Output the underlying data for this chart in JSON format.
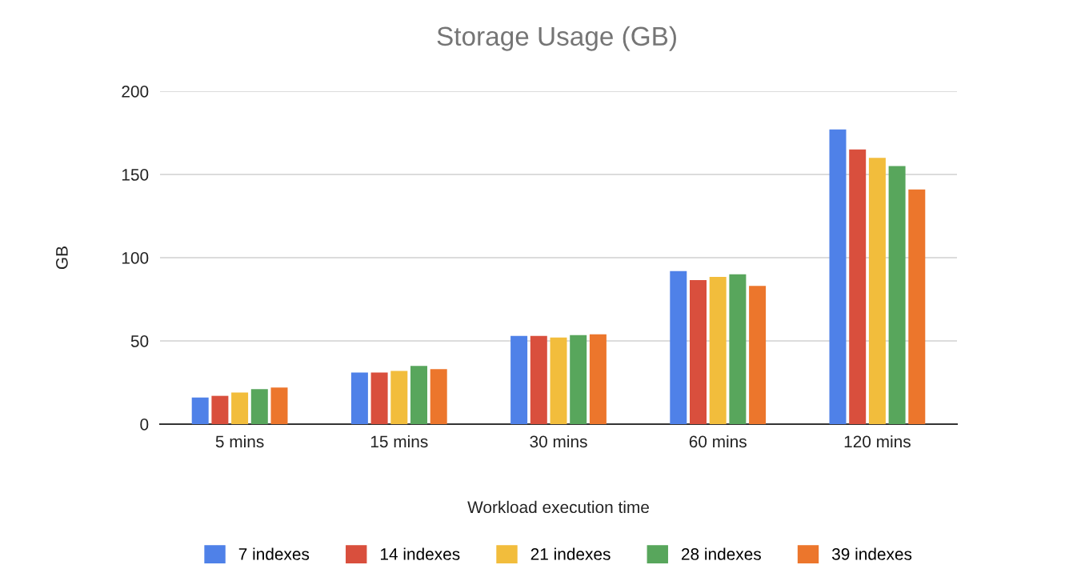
{
  "chart_data": {
    "type": "bar",
    "title": "Storage Usage (GB)",
    "xlabel": "Workload execution time",
    "ylabel": "GB",
    "categories": [
      "5 mins",
      "15 mins",
      "30 mins",
      "60 mins",
      "120 mins"
    ],
    "series": [
      {
        "name": "7 indexes",
        "color": "#4f81e8",
        "values": [
          16,
          31,
          53,
          92,
          177
        ]
      },
      {
        "name": "14 indexes",
        "color": "#d94f3d",
        "values": [
          17,
          31,
          53,
          86.5,
          165
        ]
      },
      {
        "name": "21 indexes",
        "color": "#f2bd3c",
        "values": [
          19,
          32,
          52,
          88.5,
          160
        ]
      },
      {
        "name": "28 indexes",
        "color": "#58a65c",
        "values": [
          21,
          35,
          53.5,
          90,
          155
        ]
      },
      {
        "name": "39 indexes",
        "color": "#ec762c",
        "values": [
          22,
          33,
          54,
          83,
          141
        ]
      }
    ],
    "ylim": [
      0,
      200
    ],
    "yticks": [
      0,
      50,
      100,
      150,
      200
    ],
    "grid": "y",
    "legend": "bottom"
  }
}
